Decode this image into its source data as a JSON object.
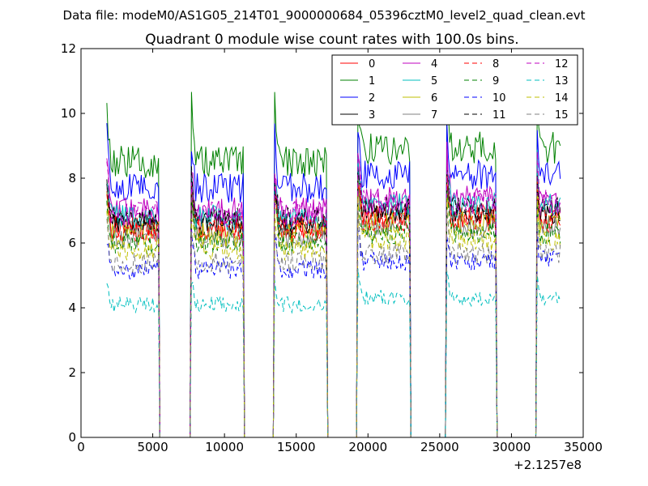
{
  "header": {
    "data_file": "Data file: modeM0/AS1G05_214T01_9000000684_05396cztM0_level2_quad_clean.evt"
  },
  "chart_data": {
    "type": "line",
    "title": "Quadrant 0 module wise count rates with 100.0s bins.",
    "xlabel": "",
    "ylabel": "",
    "x_offset_label": "+2.1257e8",
    "xlim": [
      0,
      35000
    ],
    "ylim": [
      0,
      12
    ],
    "x_ticks": [
      0,
      5000,
      10000,
      15000,
      20000,
      25000,
      30000,
      35000
    ],
    "x_tick_labels": [
      "0",
      "5000",
      "10000",
      "15000",
      "20000",
      "25000",
      "30000",
      "35000"
    ],
    "y_ticks": [
      0,
      2,
      4,
      6,
      8,
      10,
      12
    ],
    "y_tick_labels": [
      "0",
      "2",
      "4",
      "6",
      "8",
      "10",
      "12"
    ],
    "bin_seconds": 100,
    "segments": [
      [
        1800,
        5400
      ],
      [
        7700,
        11300
      ],
      [
        13500,
        17100
      ],
      [
        19300,
        22900
      ],
      [
        25500,
        28900
      ],
      [
        31800,
        33400
      ]
    ],
    "legend_position": "top-right",
    "series": [
      {
        "name": "0",
        "mean": 6.5,
        "color": "#ff0000",
        "dash": "solid"
      },
      {
        "name": "1",
        "mean": 8.5,
        "color": "#008000",
        "dash": "solid"
      },
      {
        "name": "2",
        "mean": 7.7,
        "color": "#0000ff",
        "dash": "solid"
      },
      {
        "name": "3",
        "mean": 6.6,
        "color": "#000000",
        "dash": "solid"
      },
      {
        "name": "4",
        "mean": 7.0,
        "color": "#bf00bf",
        "dash": "solid"
      },
      {
        "name": "5",
        "mean": 6.8,
        "color": "#00bfbf",
        "dash": "solid"
      },
      {
        "name": "6",
        "mean": 6.3,
        "color": "#bfbf00",
        "dash": "solid"
      },
      {
        "name": "7",
        "mean": 6.2,
        "color": "#808080",
        "dash": "solid"
      },
      {
        "name": "8",
        "mean": 6.4,
        "color": "#ff0000",
        "dash": "dash"
      },
      {
        "name": "9",
        "mean": 6.0,
        "color": "#008000",
        "dash": "dash"
      },
      {
        "name": "10",
        "mean": 5.2,
        "color": "#0000ff",
        "dash": "dash"
      },
      {
        "name": "11",
        "mean": 6.7,
        "color": "#000000",
        "dash": "dash"
      },
      {
        "name": "12",
        "mean": 6.9,
        "color": "#bf00bf",
        "dash": "dash"
      },
      {
        "name": "13",
        "mean": 4.1,
        "color": "#00bfbf",
        "dash": "dash"
      },
      {
        "name": "14",
        "mean": 5.8,
        "color": "#bfbf00",
        "dash": "dash"
      },
      {
        "name": "15",
        "mean": 5.4,
        "color": "#808080",
        "dash": "dash"
      }
    ]
  }
}
